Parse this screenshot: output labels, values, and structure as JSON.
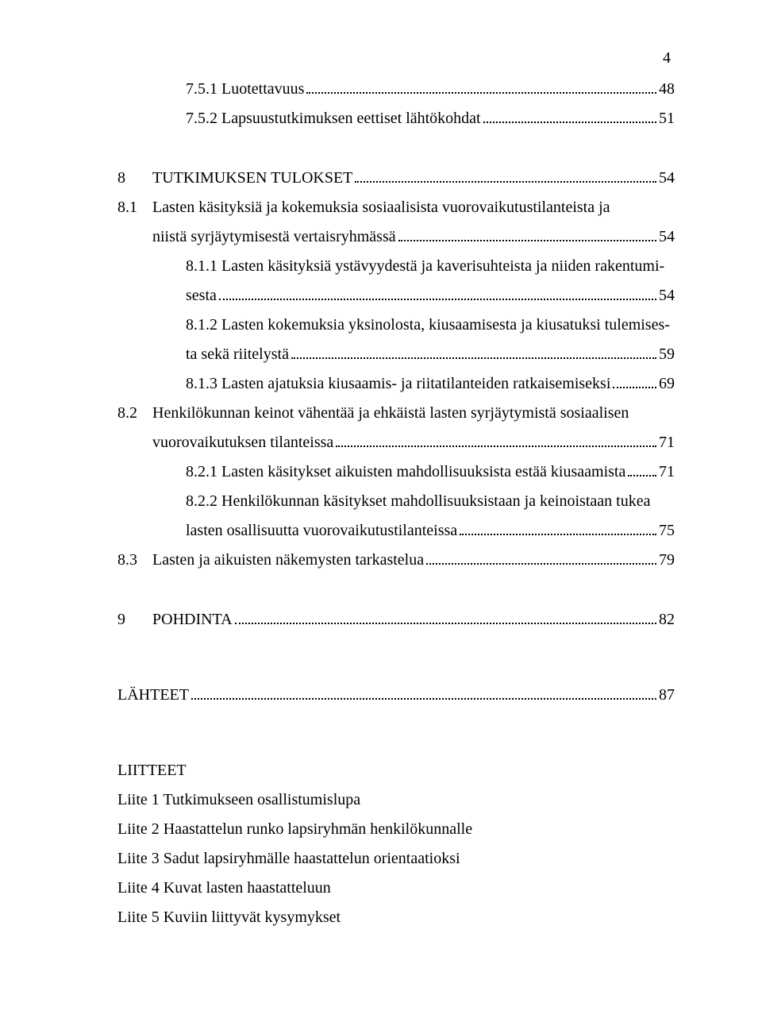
{
  "page_number": "4",
  "entries": {
    "e1": {
      "label": "7.5.1 ",
      "text": "Luotettavuus",
      "page": "48"
    },
    "e2": {
      "label": "7.5.2 ",
      "text": "Lapsuustutkimuksen eettiset lähtökohdat",
      "page": "51"
    },
    "e3": {
      "num": "8",
      "text": "TUTKIMUKSEN TULOKSET",
      "page": "54"
    },
    "e4": {
      "label": "8.1",
      "text_a": "Lasten käsityksiä ja kokemuksia sosiaalisista vuorovaikutustilanteista ja",
      "text_b": "niistä syrjäytymisestä vertaisryhmässä",
      "page": "54"
    },
    "e5": {
      "label": "8.1.1 ",
      "text_a": "Lasten käsityksiä ystävyydestä ja kaverisuhteista ja niiden rakentumi-",
      "text_b": "sesta",
      "page": "54"
    },
    "e6": {
      "label": "8.1.2 ",
      "text_a": "Lasten kokemuksia yksinolosta, kiusaamisesta ja kiusatuksi tulemises-",
      "text_b": "ta sekä riitelystä",
      "page": "59"
    },
    "e7": {
      "label": "8.1.3 ",
      "text": "Lasten ajatuksia kiusaamis- ja riitatilanteiden ratkaisemiseksi",
      "page": "69"
    },
    "e8": {
      "label": "8.2",
      "text_a": "Henkilökunnan keinot vähentää ja ehkäistä lasten syrjäytymistä sosiaalisen",
      "text_b": "vuorovaikutuksen tilanteissa",
      "page": "71"
    },
    "e9": {
      "label": "8.2.1 ",
      "text": "Lasten käsitykset aikuisten mahdollisuuksista estää kiusaamista ",
      "page": "71"
    },
    "e10": {
      "label": "8.2.2 ",
      "text_a": "Henkilökunnan käsitykset mahdollisuuksistaan ja keinoistaan tukea",
      "text_b": "lasten osallisuutta vuorovaikutustilanteissa",
      "page": "75"
    },
    "e11": {
      "label": "8.3",
      "text": "Lasten ja aikuisten näkemysten tarkastelua",
      "page": "79"
    },
    "e12": {
      "num": "9",
      "text": "POHDINTA",
      "page": "82"
    },
    "e13": {
      "text": "LÄHTEET",
      "page": "87"
    }
  },
  "appendix": {
    "heading": "LIITTEET",
    "items": {
      "a1": "Liite 1 Tutkimukseen osallistumislupa",
      "a2": "Liite 2 Haastattelun runko lapsiryhmän henkilökunnalle",
      "a3": "Liite 3 Sadut lapsiryhmälle haastattelun orientaatioksi",
      "a4": "Liite 4 Kuvat lasten haastatteluun",
      "a5": "Liite 5 Kuviin liittyvät kysymykset"
    }
  }
}
